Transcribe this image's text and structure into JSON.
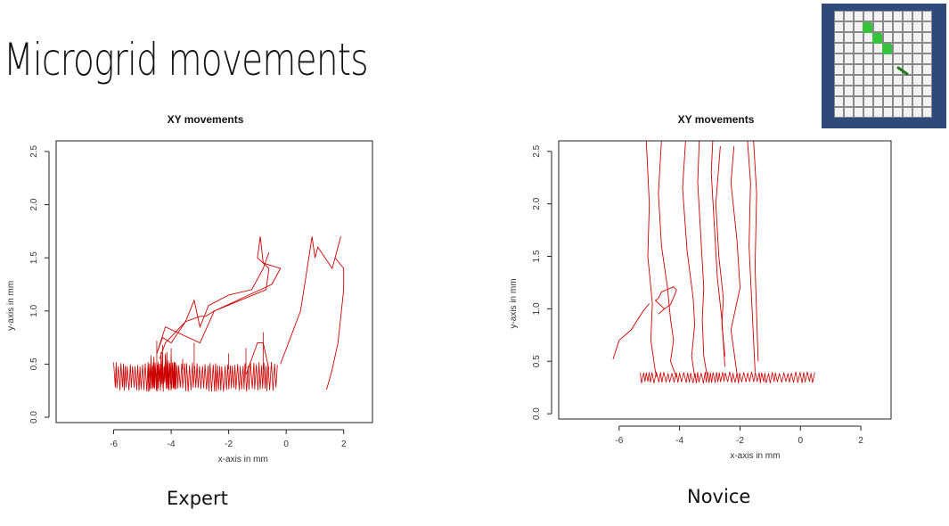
{
  "slide": {
    "title": "Microgrid movements"
  },
  "thumbnail": {
    "rows": 10,
    "cols": 10,
    "colors": {
      "border": "#2f4a7a",
      "cell": "#f2f2f2",
      "gridline": "#888888",
      "highlight": "#36c23a",
      "pointer": "#1a7a1a"
    }
  },
  "captions": {
    "left": "Expert",
    "right": "Novice"
  },
  "chart_data": [
    {
      "type": "line",
      "title": "XY movements",
      "xlabel": "x-axis in mm",
      "ylabel": "y-axis in mm",
      "xlim": [
        -8,
        3
      ],
      "ylim": [
        -0.05,
        2.6
      ],
      "xticks": [
        "-6",
        "-4",
        "-2",
        "0",
        "2"
      ],
      "yticks": [
        "0.0",
        "0.5",
        "1.0",
        "1.5",
        "2.0",
        "2.5"
      ],
      "color": "#cc0000",
      "series": [
        {
          "x": [
            -4.5,
            -4.2,
            -3.0,
            -2.5,
            -0.5,
            -0.2,
            -0.8,
            -0.9,
            -1.0,
            -0.6,
            -0.7,
            -2.5,
            -2.8,
            -3.0,
            -3.5,
            -4.0,
            -4.3,
            -4.5
          ],
          "y": [
            0.6,
            0.85,
            0.7,
            1.0,
            1.25,
            1.4,
            1.45,
            1.7,
            1.5,
            1.4,
            1.2,
            1.0,
            0.95,
            0.95,
            0.9,
            0.7,
            0.75,
            0.6
          ]
        },
        {
          "x": [
            -4.4,
            -4.2,
            -3.5,
            -3.2,
            -3.0,
            -2.7,
            -2.0,
            -1.2,
            -0.8,
            -0.6
          ],
          "y": [
            0.55,
            0.7,
            0.9,
            1.1,
            0.85,
            1.05,
            1.15,
            1.2,
            1.4,
            1.55
          ]
        },
        {
          "x": [
            -0.2,
            0.5,
            0.7,
            0.9,
            1.0,
            1.1,
            1.6,
            1.9,
            1.7,
            2.0,
            2.0,
            1.8,
            1.6,
            1.5,
            1.4
          ],
          "y": [
            0.5,
            1.0,
            1.35,
            1.7,
            1.5,
            1.6,
            1.4,
            1.7,
            1.5,
            1.4,
            1.2,
            0.7,
            0.45,
            0.35,
            0.26
          ]
        },
        {
          "x": [
            -1.4,
            -1.2,
            -1.0,
            -0.8,
            -0.6
          ],
          "y": [
            0.4,
            0.55,
            0.7,
            0.7,
            0.45
          ]
        }
      ],
      "band": {
        "x": [
          -6.0,
          1.3
        ],
        "y": [
          0.24,
          0.52
        ],
        "gaps": [
          [
            -0.3,
            -0.1
          ]
        ]
      },
      "band_dense": {
        "x": [
          -4.8,
          -3.8
        ],
        "y": [
          0.24,
          0.62
        ]
      },
      "spikes": [
        {
          "x": -4.5,
          "y": 0.72
        },
        {
          "x": -4.3,
          "y": 0.68
        },
        {
          "x": -4.0,
          "y": 0.65
        },
        {
          "x": -3.6,
          "y": 0.55
        },
        {
          "x": -3.2,
          "y": 0.7
        },
        {
          "x": -2.0,
          "y": 0.6
        },
        {
          "x": -1.4,
          "y": 0.65
        },
        {
          "x": -0.8,
          "y": 0.8
        }
      ]
    },
    {
      "type": "line",
      "title": "XY movements",
      "xlabel": "x-axis in mm",
      "ylabel": "y-axis in mm",
      "xlim": [
        -8,
        3
      ],
      "ylim": [
        -0.05,
        2.6
      ],
      "xticks": [
        "-6",
        "-4",
        "-2",
        "0",
        "2"
      ],
      "yticks": [
        "0.0",
        "0.5",
        "1.0",
        "1.5",
        "2.0",
        "2.5"
      ],
      "color": "#cc0000",
      "series": [
        {
          "x": [
            -6.2,
            -6.0,
            -5.6,
            -5.2,
            -5.0
          ],
          "y": [
            0.52,
            0.7,
            0.8,
            0.98,
            1.05
          ]
        },
        {
          "x": [
            -4.7,
            -4.5,
            -4.3,
            -4.15,
            -4.1,
            -4.2,
            -4.6,
            -4.7,
            -4.8,
            -4.5
          ],
          "y": [
            0.95,
            1.0,
            1.04,
            1.14,
            1.18,
            1.21,
            1.16,
            1.1,
            1.08,
            1.0
          ]
        },
        {
          "x": [
            -5.1,
            -5.0,
            -5.05,
            -4.9,
            -4.95,
            -4.85,
            -4.8,
            -4.75
          ],
          "y": [
            2.6,
            2.0,
            1.5,
            1.05,
            0.7,
            0.5,
            0.4,
            0.35
          ]
        },
        {
          "x": [
            -4.6,
            -4.7,
            -4.6,
            -4.4,
            -4.3,
            -4.2,
            -4.3,
            -4.2,
            -4.1
          ],
          "y": [
            2.6,
            2.1,
            1.6,
            1.2,
            0.9,
            0.7,
            0.5,
            0.42,
            0.35
          ]
        },
        {
          "x": [
            -3.8,
            -3.9,
            -3.75,
            -3.55,
            -3.5,
            -3.6,
            -3.5
          ],
          "y": [
            2.6,
            2.15,
            1.55,
            1.1,
            0.85,
            0.55,
            0.35
          ]
        },
        {
          "x": [
            -3.35,
            -3.4,
            -3.3,
            -3.2,
            -3.25,
            -3.2,
            -3.1
          ],
          "y": [
            2.6,
            2.2,
            1.7,
            1.2,
            0.9,
            0.55,
            0.38
          ]
        },
        {
          "x": [
            -2.9,
            -2.95,
            -2.85,
            -2.75,
            -2.6,
            -2.5
          ],
          "y": [
            2.6,
            2.3,
            1.8,
            1.3,
            0.9,
            0.45
          ]
        },
        {
          "x": [
            -2.65,
            -2.8,
            -2.7,
            -2.55,
            -2.6,
            -2.5
          ],
          "y": [
            2.55,
            2.0,
            1.5,
            1.1,
            0.85,
            0.55
          ]
        },
        {
          "x": [
            -2.2,
            -2.3,
            -2.1,
            -2.0,
            -2.3,
            -2.1
          ],
          "y": [
            2.55,
            2.2,
            1.65,
            1.2,
            0.8,
            0.38
          ]
        },
        {
          "x": [
            -1.75,
            -1.65,
            -1.7,
            -1.6,
            -1.5
          ],
          "y": [
            2.6,
            2.2,
            1.6,
            1.0,
            0.4
          ]
        },
        {
          "x": [
            -1.55,
            -1.45,
            -1.5,
            -1.4
          ],
          "y": [
            2.6,
            2.1,
            1.4,
            0.5
          ]
        }
      ],
      "band": {
        "x": [
          -5.3,
          0.5
        ],
        "y": [
          0.29,
          0.4
        ],
        "gaps": []
      }
    }
  ]
}
